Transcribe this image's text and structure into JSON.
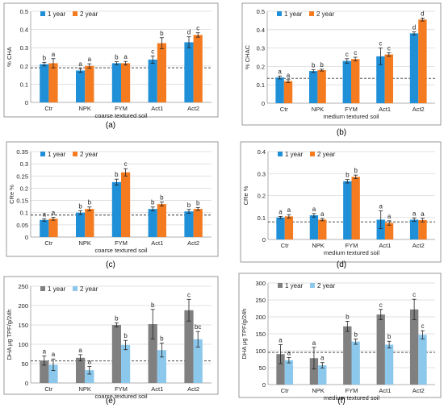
{
  "figure": {
    "colors": {
      "blue": "#1f8fd8",
      "orange": "#f47b20",
      "dark_gray": "#808080",
      "light_blue": "#8cc8ec",
      "error_bar": "#222222",
      "grid": "#d9d9d9",
      "frame": "#7f7f7f"
    }
  },
  "chart_data": [
    {
      "panel": "(a)",
      "type": "bar",
      "categories": [
        "Ctr",
        "NPK",
        "FYM",
        "Act1",
        "Act2"
      ],
      "series": [
        {
          "name": "1 year",
          "values": [
            0.21,
            0.175,
            0.215,
            0.235,
            0.33
          ],
          "errors": [
            0.01,
            0.01,
            0.008,
            0.02,
            0.03
          ],
          "letters": [
            "b",
            "a",
            "b",
            "c",
            "d"
          ]
        },
        {
          "name": "2 year",
          "values": [
            0.215,
            0.2,
            0.215,
            0.325,
            0.37
          ],
          "errors": [
            0.025,
            0.012,
            0.01,
            0.03,
            0.012
          ],
          "letters": [
            "a",
            "a",
            "a",
            "b",
            "c"
          ]
        }
      ],
      "xlabel": "coarse textured soil",
      "ylabel": "% CHA",
      "ylim": [
        0,
        0.5
      ],
      "yticks": [
        "0",
        "0.1",
        "0.2",
        "0.3",
        "0.4",
        "0.5"
      ],
      "reference_line": 0.19,
      "legend": "top-left",
      "grid": true
    },
    {
      "panel": "(b)",
      "type": "bar",
      "categories": [
        "Ctr",
        "NPK",
        "FYM",
        "Act1",
        "Act2"
      ],
      "series": [
        {
          "name": "1 year",
          "values": [
            0.14,
            0.175,
            0.23,
            0.255,
            0.38
          ],
          "errors": [
            0.008,
            0.008,
            0.012,
            0.045,
            0.008
          ],
          "letters": [
            "a",
            "b",
            "c",
            "c",
            "d"
          ]
        },
        {
          "name": "2 year",
          "values": [
            0.12,
            0.18,
            0.24,
            0.265,
            0.455
          ],
          "errors": [
            0.008,
            0.005,
            0.01,
            0.01,
            0.008
          ],
          "letters": [
            "a",
            "b",
            "c",
            "c",
            "d"
          ]
        }
      ],
      "xlabel": "medium textured soil",
      "ylabel": "% CHAC",
      "ylim": [
        0,
        0.5
      ],
      "yticks": [
        "0",
        "0.1",
        "0.2",
        "0.3",
        "0.4",
        "0.5"
      ],
      "reference_line": 0.135,
      "legend": "top-left",
      "grid": true
    },
    {
      "panel": "(c)",
      "type": "bar",
      "categories": [
        "Ctr",
        "NPK",
        "FYM",
        "Act1",
        "Act2"
      ],
      "series": [
        {
          "name": "1 year",
          "values": [
            0.07,
            0.1,
            0.225,
            0.115,
            0.105
          ],
          "errors": [
            0.005,
            0.008,
            0.012,
            0.008,
            0.008
          ],
          "letters": [
            "a",
            "b",
            "b",
            "b",
            "b"
          ]
        },
        {
          "name": "2 year",
          "values": [
            0.075,
            0.115,
            0.265,
            0.135,
            0.115
          ],
          "errors": [
            0.006,
            0.008,
            0.015,
            0.008,
            0.006
          ],
          "letters": [
            "a",
            "b",
            "c",
            "b",
            "b"
          ]
        }
      ],
      "xlabel": "coarse textured soil",
      "ylabel": "CRe %",
      "ylim": [
        0,
        0.35
      ],
      "yticks": [
        "0",
        "0.05",
        "0.1",
        "0.15",
        "0.2",
        "0.25",
        "0.3",
        "0.35"
      ],
      "reference_line": 0.09,
      "legend": "top-left",
      "grid": true
    },
    {
      "panel": "(d)",
      "type": "bar",
      "categories": [
        "Ctr",
        "NPK",
        "FYM",
        "Act1",
        "Act2"
      ],
      "series": [
        {
          "name": "1 year",
          "values": [
            0.1,
            0.11,
            0.265,
            0.09,
            0.09
          ],
          "errors": [
            0.005,
            0.008,
            0.008,
            0.04,
            0.008
          ],
          "letters": [
            "a",
            "a",
            "b",
            "a",
            "a"
          ]
        },
        {
          "name": "2 year",
          "values": [
            0.105,
            0.09,
            0.285,
            0.075,
            0.088
          ],
          "errors": [
            0.008,
            0.005,
            0.008,
            0.01,
            0.008
          ],
          "letters": [
            "a",
            "a",
            "b",
            "a",
            "a"
          ]
        }
      ],
      "xlabel": "medium textured soil",
      "ylabel": "CRe %",
      "ylim": [
        0,
        0.4
      ],
      "yticks": [
        "0",
        "0.1",
        "0.2",
        "0.3",
        "0.4"
      ],
      "reference_line": 0.08,
      "legend": "top-left",
      "grid": true
    },
    {
      "panel": "(e)",
      "type": "bar",
      "categories": [
        "Ctr",
        "NPK",
        "FYM",
        "Act1",
        "Act2"
      ],
      "series": [
        {
          "name": "1 year",
          "values": [
            58,
            65,
            150,
            152,
            188
          ],
          "errors": [
            12,
            8,
            5,
            38,
            28
          ],
          "letters": [
            "a",
            "a",
            "b",
            "b",
            "c"
          ]
        },
        {
          "name": "2 year",
          "values": [
            47,
            33,
            98,
            85,
            113
          ],
          "errors": [
            15,
            10,
            12,
            18,
            20
          ],
          "letters": [
            "a",
            "a",
            "b",
            "b",
            "bc"
          ]
        }
      ],
      "xlabel": "coarse textured soil",
      "ylabel": "DHA μg TPF/g/24h",
      "ylim": [
        0,
        250
      ],
      "yticks": [
        "0",
        "50",
        "100",
        "150",
        "200",
        "250"
      ],
      "reference_line": 57,
      "legend": "top-left",
      "grid": true
    },
    {
      "panel": "(f)",
      "type": "bar",
      "categories": [
        "Ctr",
        "NPK",
        "FYM",
        "Act1",
        "Act2"
      ],
      "series": [
        {
          "name": "1 year",
          "values": [
            90,
            78,
            172,
            207,
            222
          ],
          "errors": [
            28,
            32,
            15,
            15,
            30
          ],
          "letters": [
            "a",
            "a",
            "b",
            "c",
            "c"
          ]
        },
        {
          "name": "2 year",
          "values": [
            72,
            57,
            127,
            118,
            147
          ],
          "errors": [
            8,
            8,
            8,
            10,
            12
          ],
          "letters": [
            "a",
            "a",
            "b",
            "b",
            "c"
          ]
        }
      ],
      "xlabel": "medium textured soil",
      "ylabel": "DHA μg TPF/g/24h",
      "ylim": [
        0,
        300
      ],
      "yticks": [
        "0",
        "50",
        "100",
        "150",
        "200",
        "250",
        "300"
      ],
      "reference_line": 95,
      "legend": "top-left",
      "grid": true
    }
  ]
}
